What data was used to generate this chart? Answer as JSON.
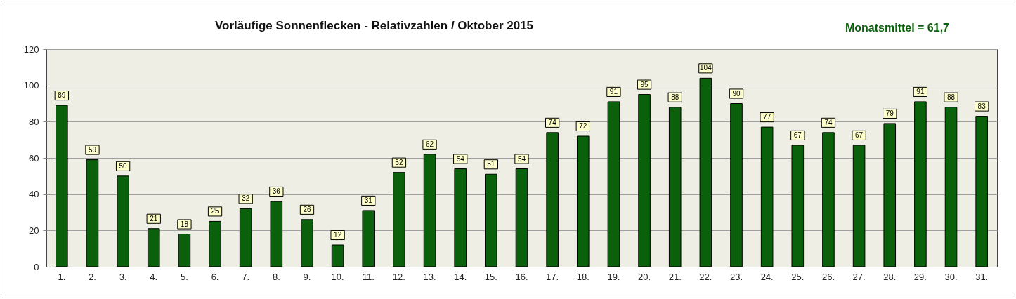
{
  "chart_data": {
    "type": "bar",
    "title": "Vorläufige Sonnenflecken - Relativzahlen  /   Oktober 2015",
    "annotations": [
      "Monatsmittel = 61,7"
    ],
    "categories": [
      "1.",
      "2.",
      "3.",
      "4.",
      "5.",
      "6.",
      "7.",
      "8.",
      "9.",
      "10.",
      "11.",
      "12.",
      "13.",
      "14.",
      "15.",
      "16.",
      "17.",
      "18.",
      "19.",
      "20.",
      "21.",
      "22.",
      "23.",
      "24.",
      "25.",
      "26.",
      "27.",
      "28.",
      "29.",
      "30.",
      "31."
    ],
    "values": [
      89,
      59,
      50,
      21,
      18,
      25,
      32,
      36,
      26,
      12,
      31,
      52,
      62,
      54,
      51,
      54,
      74,
      72,
      91,
      95,
      88,
      104,
      90,
      77,
      67,
      74,
      67,
      79,
      91,
      88,
      83
    ],
    "color": "#0b610b",
    "ylim": [
      0,
      120
    ],
    "yticks": [
      0,
      20,
      40,
      60,
      80,
      100,
      120
    ],
    "grid": "y",
    "data_labels": true
  }
}
